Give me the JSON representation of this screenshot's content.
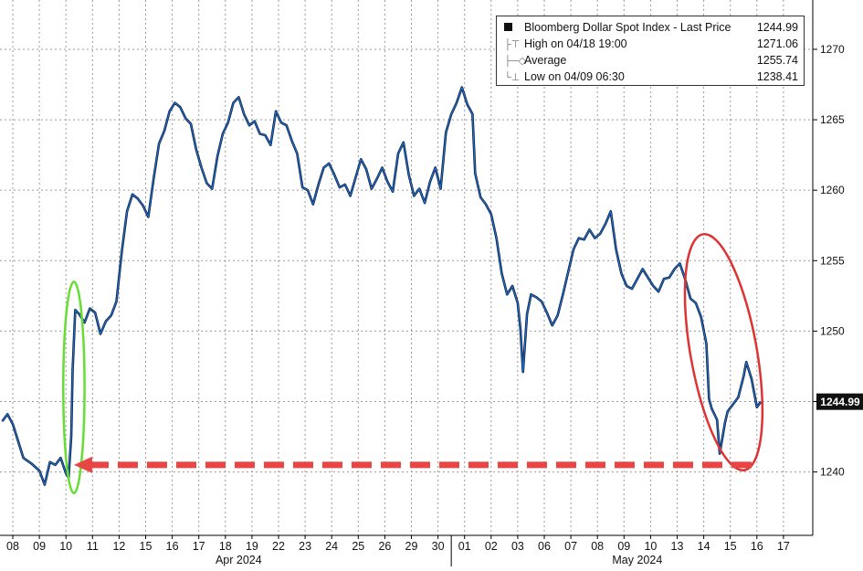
{
  "chart_data": {
    "type": "line",
    "title": "",
    "xlabel": "",
    "ylabel": "",
    "ylim": [
      1235.5,
      1273.5
    ],
    "y_ticks": [
      1240,
      1245,
      1250,
      1255,
      1260,
      1265,
      1270
    ],
    "x_ticks": [
      {
        "label": "08",
        "day": 0
      },
      {
        "label": "09",
        "day": 1
      },
      {
        "label": "10",
        "day": 2
      },
      {
        "label": "11",
        "day": 3
      },
      {
        "label": "12",
        "day": 4
      },
      {
        "label": "15",
        "day": 5
      },
      {
        "label": "16",
        "day": 6
      },
      {
        "label": "17",
        "day": 7
      },
      {
        "label": "18",
        "day": 8
      },
      {
        "label": "19",
        "day": 9
      },
      {
        "label": "22",
        "day": 10
      },
      {
        "label": "23",
        "day": 11
      },
      {
        "label": "24",
        "day": 12
      },
      {
        "label": "25",
        "day": 13
      },
      {
        "label": "26",
        "day": 14
      },
      {
        "label": "29",
        "day": 15
      },
      {
        "label": "30",
        "day": 16
      },
      {
        "label": "01",
        "day": 17
      },
      {
        "label": "02",
        "day": 18
      },
      {
        "label": "03",
        "day": 19
      },
      {
        "label": "06",
        "day": 20
      },
      {
        "label": "07",
        "day": 21
      },
      {
        "label": "08",
        "day": 22
      },
      {
        "label": "09",
        "day": 23
      },
      {
        "label": "10",
        "day": 24
      },
      {
        "label": "13",
        "day": 25
      },
      {
        "label": "14",
        "day": 26
      },
      {
        "label": "15",
        "day": 27
      },
      {
        "label": "16",
        "day": 28
      },
      {
        "label": "17",
        "day": 29
      }
    ],
    "month_labels": [
      {
        "label": "Apr 2024",
        "day": 8.5
      },
      {
        "label": "May 2024",
        "day": 23.5
      }
    ],
    "series": [
      {
        "name": "Bloomberg Dollar Spot Index - Last Price",
        "color": "#1f6fd1",
        "points": [
          [
            -0.4,
            1243.6
          ],
          [
            -0.2,
            1244.1
          ],
          [
            0.0,
            1243.4
          ],
          [
            0.2,
            1242.2
          ],
          [
            0.4,
            1241.0
          ],
          [
            0.7,
            1240.6
          ],
          [
            1.0,
            1240.1
          ],
          [
            1.2,
            1239.1
          ],
          [
            1.4,
            1240.7
          ],
          [
            1.6,
            1240.5
          ],
          [
            1.8,
            1241.0
          ],
          [
            2.0,
            1239.9
          ],
          [
            2.1,
            1239.6
          ],
          [
            2.2,
            1242.5
          ],
          [
            2.25,
            1247.2
          ],
          [
            2.35,
            1251.5
          ],
          [
            2.5,
            1251.2
          ],
          [
            2.7,
            1250.6
          ],
          [
            2.9,
            1251.6
          ],
          [
            3.1,
            1251.3
          ],
          [
            3.3,
            1249.8
          ],
          [
            3.5,
            1250.7
          ],
          [
            3.7,
            1251.1
          ],
          [
            3.9,
            1252.1
          ],
          [
            4.1,
            1255.6
          ],
          [
            4.3,
            1258.5
          ],
          [
            4.5,
            1259.7
          ],
          [
            4.7,
            1259.4
          ],
          [
            4.9,
            1258.9
          ],
          [
            5.1,
            1258.1
          ],
          [
            5.3,
            1260.8
          ],
          [
            5.5,
            1263.3
          ],
          [
            5.7,
            1264.2
          ],
          [
            5.9,
            1265.6
          ],
          [
            6.1,
            1266.2
          ],
          [
            6.3,
            1265.9
          ],
          [
            6.5,
            1265.1
          ],
          [
            6.7,
            1264.7
          ],
          [
            6.9,
            1262.9
          ],
          [
            7.1,
            1261.6
          ],
          [
            7.3,
            1260.5
          ],
          [
            7.5,
            1260.1
          ],
          [
            7.7,
            1262.4
          ],
          [
            7.9,
            1264.0
          ],
          [
            8.1,
            1264.8
          ],
          [
            8.3,
            1266.2
          ],
          [
            8.5,
            1266.6
          ],
          [
            8.7,
            1265.4
          ],
          [
            8.9,
            1264.6
          ],
          [
            9.1,
            1264.9
          ],
          [
            9.3,
            1264.0
          ],
          [
            9.5,
            1263.9
          ],
          [
            9.7,
            1263.2
          ],
          [
            9.9,
            1265.6
          ],
          [
            10.1,
            1264.8
          ],
          [
            10.3,
            1264.6
          ],
          [
            10.5,
            1263.5
          ],
          [
            10.7,
            1262.6
          ],
          [
            10.9,
            1260.2
          ],
          [
            11.1,
            1260.0
          ],
          [
            11.3,
            1259.0
          ],
          [
            11.5,
            1260.4
          ],
          [
            11.7,
            1261.6
          ],
          [
            11.9,
            1261.9
          ],
          [
            12.1,
            1261.1
          ],
          [
            12.3,
            1260.2
          ],
          [
            12.5,
            1260.4
          ],
          [
            12.7,
            1259.6
          ],
          [
            12.9,
            1260.9
          ],
          [
            13.1,
            1262.2
          ],
          [
            13.3,
            1261.5
          ],
          [
            13.5,
            1260.1
          ],
          [
            13.7,
            1260.8
          ],
          [
            13.9,
            1261.6
          ],
          [
            14.1,
            1260.6
          ],
          [
            14.3,
            1259.9
          ],
          [
            14.5,
            1262.6
          ],
          [
            14.7,
            1263.4
          ],
          [
            14.9,
            1261.1
          ],
          [
            15.1,
            1259.6
          ],
          [
            15.3,
            1260.1
          ],
          [
            15.5,
            1259.1
          ],
          [
            15.7,
            1260.6
          ],
          [
            15.9,
            1261.6
          ],
          [
            16.1,
            1260.1
          ],
          [
            16.3,
            1264.1
          ],
          [
            16.5,
            1265.4
          ],
          [
            16.7,
            1266.2
          ],
          [
            16.9,
            1267.3
          ],
          [
            17.1,
            1266.1
          ],
          [
            17.3,
            1265.4
          ],
          [
            17.4,
            1261.2
          ],
          [
            17.6,
            1259.5
          ],
          [
            17.8,
            1259.0
          ],
          [
            18.0,
            1258.3
          ],
          [
            18.2,
            1256.6
          ],
          [
            18.4,
            1254.1
          ],
          [
            18.6,
            1252.6
          ],
          [
            18.8,
            1253.2
          ],
          [
            19.0,
            1252.0
          ],
          [
            19.1,
            1250.2
          ],
          [
            19.2,
            1247.1
          ],
          [
            19.35,
            1251.2
          ],
          [
            19.5,
            1252.6
          ],
          [
            19.7,
            1252.4
          ],
          [
            19.9,
            1252.1
          ],
          [
            20.1,
            1251.3
          ],
          [
            20.3,
            1250.4
          ],
          [
            20.5,
            1251.1
          ],
          [
            20.7,
            1252.6
          ],
          [
            20.9,
            1254.2
          ],
          [
            21.1,
            1255.8
          ],
          [
            21.3,
            1256.6
          ],
          [
            21.5,
            1256.5
          ],
          [
            21.7,
            1257.2
          ],
          [
            21.9,
            1256.6
          ],
          [
            22.1,
            1256.9
          ],
          [
            22.3,
            1257.6
          ],
          [
            22.5,
            1258.5
          ],
          [
            22.7,
            1255.8
          ],
          [
            22.9,
            1254.1
          ],
          [
            23.1,
            1253.2
          ],
          [
            23.3,
            1253.0
          ],
          [
            23.5,
            1253.7
          ],
          [
            23.7,
            1254.4
          ],
          [
            23.9,
            1253.8
          ],
          [
            24.1,
            1253.2
          ],
          [
            24.3,
            1252.8
          ],
          [
            24.5,
            1253.7
          ],
          [
            24.7,
            1253.8
          ],
          [
            24.9,
            1254.4
          ],
          [
            25.1,
            1254.8
          ],
          [
            25.3,
            1253.7
          ],
          [
            25.5,
            1252.3
          ],
          [
            25.7,
            1252.0
          ],
          [
            25.9,
            1251.0
          ],
          [
            26.1,
            1249.1
          ],
          [
            26.2,
            1245.2
          ],
          [
            26.3,
            1244.5
          ],
          [
            26.5,
            1243.7
          ],
          [
            26.6,
            1241.3
          ],
          [
            26.8,
            1243.5
          ],
          [
            26.9,
            1244.3
          ],
          [
            27.1,
            1244.8
          ],
          [
            27.3,
            1245.3
          ],
          [
            27.5,
            1246.8
          ],
          [
            27.6,
            1247.8
          ],
          [
            27.8,
            1246.6
          ],
          [
            27.9,
            1245.6
          ],
          [
            28.0,
            1244.6
          ],
          [
            28.15,
            1244.99
          ]
        ]
      }
    ],
    "legend": {
      "position": "top-right",
      "entries": [
        {
          "label": "Bloomberg Dollar Spot Index - Last Price",
          "value": "1244.99"
        },
        {
          "label": "High on 04/18 19:00",
          "value": "1271.06"
        },
        {
          "label": "Average",
          "value": "1255.74"
        },
        {
          "label": "Low on 04/09 06:30",
          "value": "1238.41"
        }
      ]
    },
    "last_price_label": "1244.99",
    "grid": true,
    "annotations": [
      {
        "type": "ellipse",
        "color": "#66dd33",
        "day_range": [
          1.9,
          2.7
        ],
        "y_range": [
          1238.5,
          1253.5
        ]
      },
      {
        "type": "ellipse",
        "color": "#dd3333",
        "day_range": [
          25.5,
          28.0
        ],
        "y_range": [
          1240.0,
          1257.0
        ]
      },
      {
        "type": "arrow",
        "color": "#e84545",
        "from_day": 27.8,
        "to_day": 2.3,
        "y": 1240.5,
        "dashed": true
      }
    ]
  }
}
